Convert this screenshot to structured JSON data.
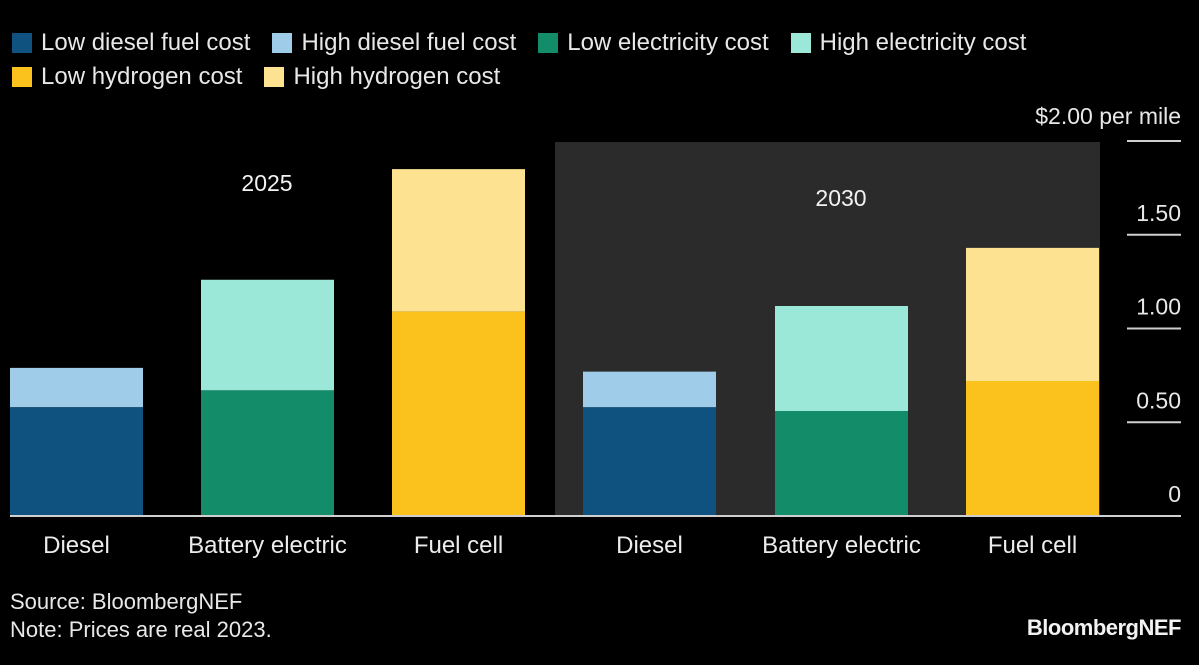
{
  "chart_data": {
    "type": "bar",
    "stacked": true,
    "unit_label": "$2.00 per mile",
    "y_ticks": [
      "0",
      "0.50",
      "1.00",
      "1.50"
    ],
    "ylim": [
      0,
      2.0
    ],
    "groups": [
      {
        "label": "2025",
        "shaded": false,
        "bars": [
          {
            "category": "Diesel",
            "low": 0.58,
            "high": 0.79,
            "low_series": "Low diesel fuel cost",
            "high_series": "High diesel fuel cost"
          },
          {
            "category": "Battery electric",
            "low": 0.67,
            "high": 1.26,
            "low_series": "Low electricity cost",
            "high_series": "High electricity cost"
          },
          {
            "category": "Fuel cell",
            "low": 1.09,
            "high": 1.85,
            "low_series": "Low hydrogen cost",
            "high_series": "High hydrogen cost"
          }
        ]
      },
      {
        "label": "2030",
        "shaded": true,
        "bars": [
          {
            "category": "Diesel",
            "low": 0.58,
            "high": 0.77,
            "low_series": "Low diesel fuel cost",
            "high_series": "High diesel fuel cost"
          },
          {
            "category": "Battery electric",
            "low": 0.56,
            "high": 1.12,
            "low_series": "Low electricity cost",
            "high_series": "High electricity cost"
          },
          {
            "category": "Fuel cell",
            "low": 0.72,
            "high": 1.43,
            "low_series": "Low hydrogen cost",
            "high_series": "High hydrogen cost"
          }
        ]
      }
    ],
    "legend_placement": "top-left"
  },
  "legend": [
    [
      {
        "label": "Low diesel fuel cost",
        "color": "#0f5280"
      },
      {
        "label": "High diesel fuel cost",
        "color": "#9fcde9"
      },
      {
        "label": "Low electricity cost",
        "color": "#138c6a"
      },
      {
        "label": "High electricity cost",
        "color": "#9ce8d8"
      }
    ],
    [
      {
        "label": "Low hydrogen cost",
        "color": "#fbc21e"
      },
      {
        "label": "High hydrogen cost",
        "color": "#fde391"
      }
    ]
  ],
  "colors": {
    "Low diesel fuel cost": "#0f5280",
    "High diesel fuel cost": "#9fcde9",
    "Low electricity cost": "#138c6a",
    "High electricity cost": "#9ce8d8",
    "Low hydrogen cost": "#fbc21e",
    "High hydrogen cost": "#fde391",
    "shade": "#2b2b2b",
    "axis": "#cfcfcf"
  },
  "footer": {
    "source": "Source: BloombergNEF",
    "note": "Note: Prices are real 2023.",
    "brand": "BloombergNEF"
  }
}
